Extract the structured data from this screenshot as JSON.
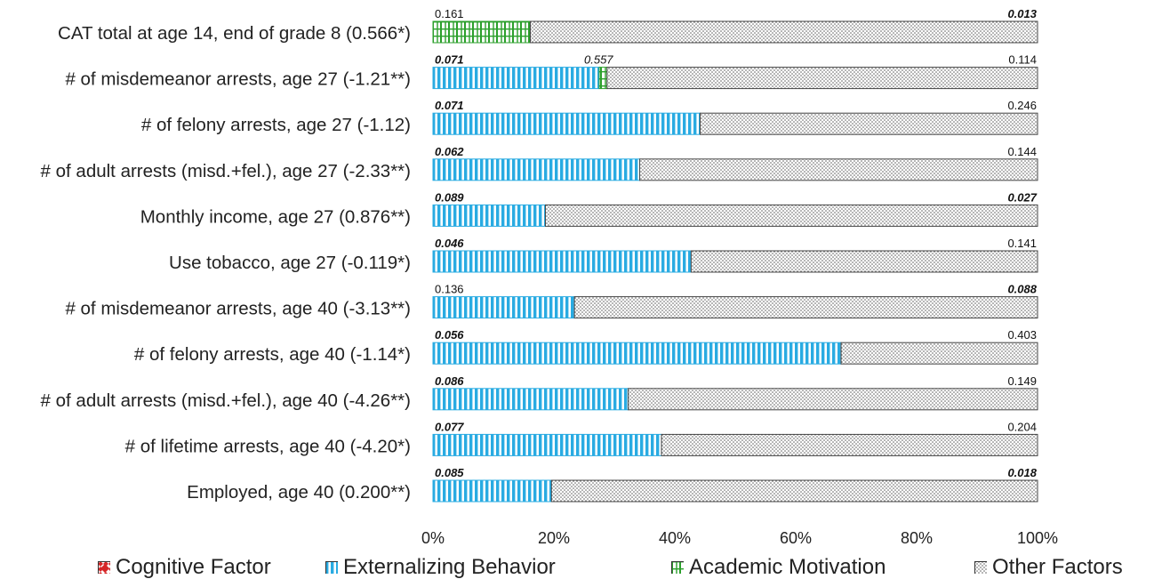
{
  "chart_data": {
    "type": "bar",
    "orientation": "horizontal",
    "stacked": true,
    "xlim": [
      0,
      100
    ],
    "xticks": [
      "0%",
      "20%",
      "40%",
      "60%",
      "80%",
      "100%"
    ],
    "categories": [
      "CAT total at age 14, end of grade 8 (0.566*)",
      "# of misdemeanor arrests, age 27 (-1.21**)",
      "# of felony arrests, age 27 (-1.12)",
      "# of adult arrests (misd.+fel.), age 27 (-2.33**)",
      "Monthly income, age 27 (0.876**)",
      "Use tobacco, age 27 (-0.119*)",
      "# of misdemeanor arrests, age 40 (-3.13**)",
      "# of felony arrests, age 40 (-1.14*)",
      "# of adult arrests (misd.+fel.), age 40 (-4.26**)",
      "# of lifetime arrests, age 40 (-4.20*)",
      "Employed, age 40 (0.200**)"
    ],
    "series": [
      {
        "name": "Cognitive Factor",
        "color": "#d62728",
        "pattern": "diamond",
        "values": [
          0,
          0,
          0,
          0,
          0,
          0,
          0,
          0,
          0,
          0,
          0
        ]
      },
      {
        "name": "Externalizing Behavior",
        "color": "#29abe2",
        "pattern": "vertical-stripes",
        "values": [
          0,
          27.5,
          44.2,
          34.2,
          18.6,
          42.7,
          23.4,
          67.5,
          32.3,
          37.8,
          19.6
        ]
      },
      {
        "name": "Academic Motivation",
        "color": "#2ca02c",
        "pattern": "grid",
        "values": [
          16.1,
          1.3,
          0,
          0,
          0,
          0,
          0,
          0,
          0,
          0,
          0
        ]
      },
      {
        "name": "Other Factors",
        "color": "#444444",
        "pattern": "dots",
        "values": [
          83.9,
          71.2,
          55.8,
          65.8,
          81.4,
          57.3,
          76.6,
          32.5,
          67.7,
          62.2,
          80.4
        ]
      }
    ],
    "annotations": [
      {
        "row": 0,
        "left": {
          "text": "0.161",
          "bold": false,
          "offset": 0
        },
        "right": {
          "text": "0.013",
          "bold": true
        }
      },
      {
        "row": 1,
        "left": {
          "text": "0.071",
          "bold": true,
          "offset": 0
        },
        "middle": {
          "text": "0.557",
          "bold": false,
          "italic": true,
          "offset": 25
        },
        "right": {
          "text": "0.114",
          "bold": false
        }
      },
      {
        "row": 2,
        "left": {
          "text": "0.071",
          "bold": true,
          "offset": 0
        },
        "right": {
          "text": "0.246",
          "bold": false
        }
      },
      {
        "row": 3,
        "left": {
          "text": "0.062",
          "bold": true,
          "offset": 0
        },
        "right": {
          "text": "0.144",
          "bold": false
        }
      },
      {
        "row": 4,
        "left": {
          "text": "0.089",
          "bold": true,
          "offset": 0
        },
        "right": {
          "text": "0.027",
          "bold": true
        }
      },
      {
        "row": 5,
        "left": {
          "text": "0.046",
          "bold": true,
          "offset": 0
        },
        "right": {
          "text": "0.141",
          "bold": false
        }
      },
      {
        "row": 6,
        "left": {
          "text": "0.136",
          "bold": false,
          "offset": 0
        },
        "right": {
          "text": "0.088",
          "bold": true
        }
      },
      {
        "row": 7,
        "left": {
          "text": "0.056",
          "bold": true,
          "offset": 0
        },
        "right": {
          "text": "0.403",
          "bold": false
        }
      },
      {
        "row": 8,
        "left": {
          "text": "0.086",
          "bold": true,
          "offset": 0
        },
        "right": {
          "text": "0.149",
          "bold": false
        }
      },
      {
        "row": 9,
        "left": {
          "text": "0.077",
          "bold": true,
          "offset": 0
        },
        "right": {
          "text": "0.204",
          "bold": false
        }
      },
      {
        "row": 10,
        "left": {
          "text": "0.085",
          "bold": true,
          "offset": 0
        },
        "right": {
          "text": "0.018",
          "bold": true
        }
      }
    ],
    "legend": {
      "position": "bottom"
    },
    "grid": false
  }
}
